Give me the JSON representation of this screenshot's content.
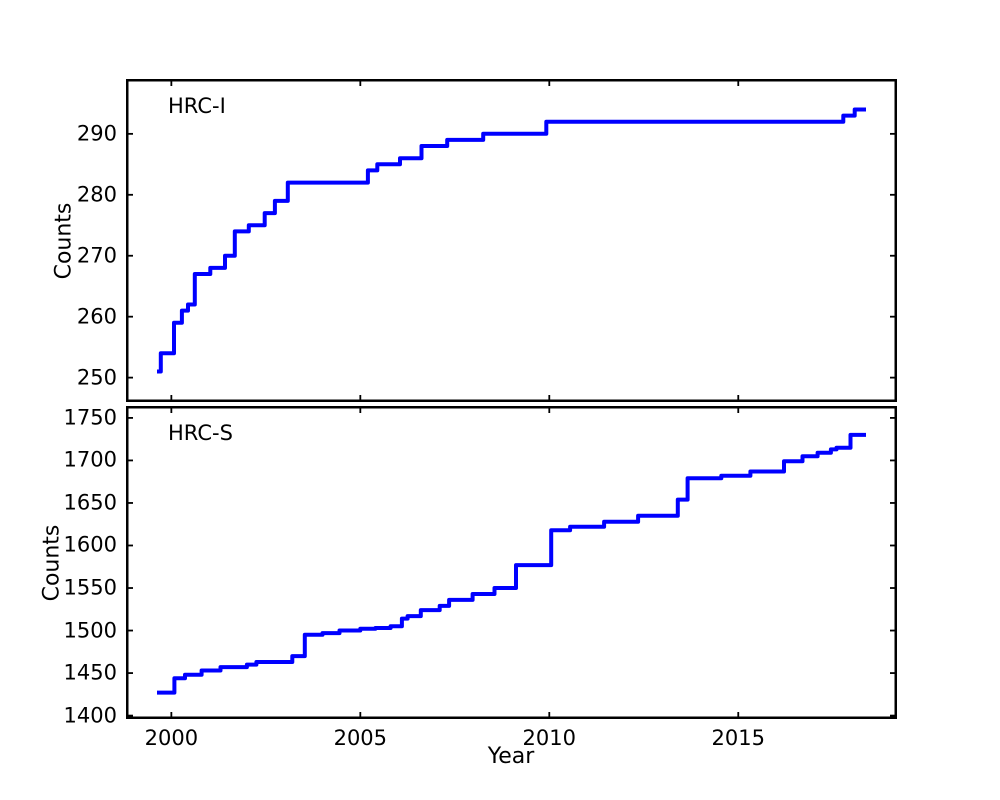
{
  "figure": {
    "background": "#ffffff",
    "axis_color": "#000000",
    "line_color": "#0000ff"
  },
  "chart_data": [
    {
      "type": "line",
      "step": "post",
      "annotation": "HRC-I",
      "title": "",
      "xlabel": "",
      "ylabel": "Counts",
      "xlim": [
        1998.8,
        2019.2
      ],
      "ylim": [
        246,
        299
      ],
      "xticks": [
        2000,
        2005,
        2010,
        2015
      ],
      "yticks": [
        250,
        260,
        270,
        280,
        290
      ],
      "show_xtick_labels": false,
      "grid": false,
      "legend": "none",
      "line_color": "#0000ff",
      "line_width": 4,
      "series": [
        {
          "name": "HRC-I",
          "end_x": 2018.38,
          "points": [
            [
              1999.62,
              251
            ],
            [
              1999.72,
              254
            ],
            [
              2000.07,
              259
            ],
            [
              2000.28,
              261
            ],
            [
              2000.44,
              262
            ],
            [
              2000.62,
              267
            ],
            [
              2001.03,
              268
            ],
            [
              2001.42,
              270
            ],
            [
              2001.68,
              274
            ],
            [
              2002.05,
              275
            ],
            [
              2002.47,
              277
            ],
            [
              2002.74,
              279
            ],
            [
              2003.08,
              282
            ],
            [
              2005.2,
              284
            ],
            [
              2005.45,
              285
            ],
            [
              2006.05,
              286
            ],
            [
              2006.62,
              288
            ],
            [
              2007.3,
              289
            ],
            [
              2008.25,
              290
            ],
            [
              2009.92,
              292
            ],
            [
              2017.78,
              293
            ],
            [
              2018.08,
              294
            ]
          ]
        }
      ]
    },
    {
      "type": "line",
      "step": "post",
      "annotation": "HRC-S",
      "title": "",
      "xlabel": "Year",
      "ylabel": "Counts",
      "xlim": [
        1998.8,
        2019.2
      ],
      "ylim": [
        1396,
        1764
      ],
      "xticks": [
        2000,
        2005,
        2010,
        2015
      ],
      "yticks": [
        1400,
        1450,
        1500,
        1550,
        1600,
        1650,
        1700,
        1750
      ],
      "show_xtick_labels": true,
      "grid": false,
      "legend": "none",
      "line_color": "#0000ff",
      "line_width": 4,
      "series": [
        {
          "name": "HRC-S",
          "end_x": 2018.38,
          "points": [
            [
              1999.62,
              1427
            ],
            [
              2000.08,
              1444
            ],
            [
              2000.36,
              1448
            ],
            [
              2000.8,
              1453
            ],
            [
              2001.3,
              1457
            ],
            [
              2002.0,
              1460
            ],
            [
              2002.25,
              1463
            ],
            [
              2003.2,
              1470
            ],
            [
              2003.53,
              1495
            ],
            [
              2004.0,
              1497
            ],
            [
              2004.45,
              1500
            ],
            [
              2005.0,
              1502
            ],
            [
              2005.4,
              1503
            ],
            [
              2005.8,
              1505
            ],
            [
              2006.1,
              1514
            ],
            [
              2006.25,
              1517
            ],
            [
              2006.6,
              1524
            ],
            [
              2007.1,
              1529
            ],
            [
              2007.35,
              1536
            ],
            [
              2007.97,
              1543
            ],
            [
              2008.55,
              1550
            ],
            [
              2009.12,
              1577
            ],
            [
              2010.05,
              1618
            ],
            [
              2010.55,
              1622
            ],
            [
              2011.45,
              1628
            ],
            [
              2012.35,
              1635
            ],
            [
              2013.4,
              1654
            ],
            [
              2013.66,
              1679
            ],
            [
              2014.55,
              1682
            ],
            [
              2015.32,
              1687
            ],
            [
              2016.21,
              1699
            ],
            [
              2016.7,
              1705
            ],
            [
              2017.1,
              1709
            ],
            [
              2017.45,
              1713
            ],
            [
              2017.6,
              1715
            ],
            [
              2017.97,
              1730
            ]
          ]
        }
      ]
    }
  ]
}
